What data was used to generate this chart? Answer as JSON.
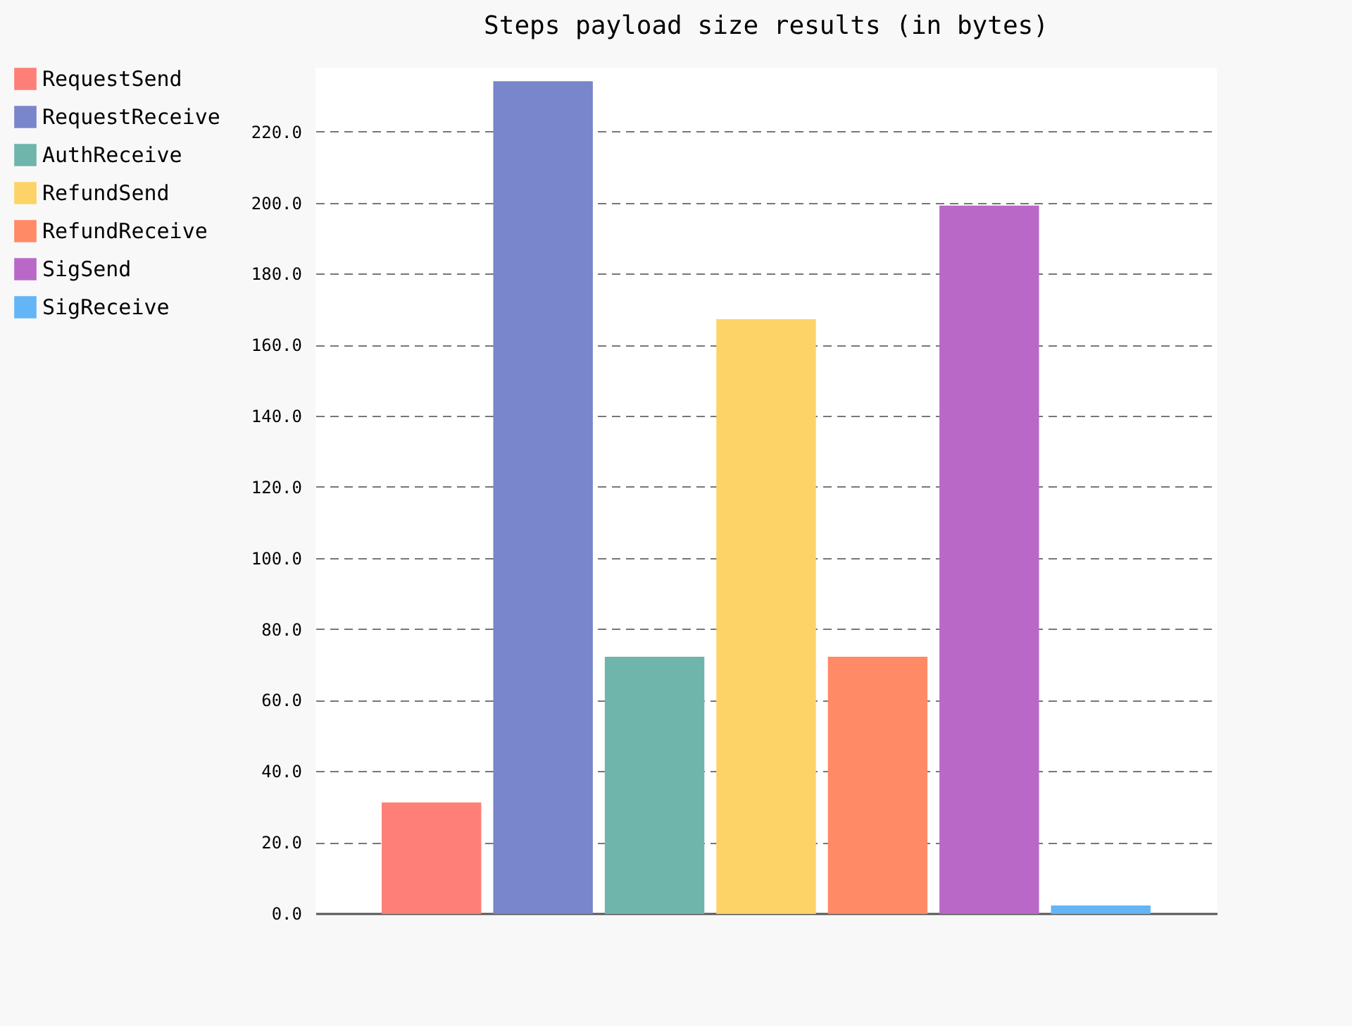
{
  "chart_data": {
    "type": "bar",
    "title": "Steps payload size results (in bytes)",
    "categories": [
      null
    ],
    "series": [
      {
        "name": "RequestSend",
        "color": "#fe7f77",
        "values": [
          31
        ]
      },
      {
        "name": "RequestReceive",
        "color": "#7986cb",
        "values": [
          234
        ]
      },
      {
        "name": "AuthReceive",
        "color": "#70b5ab",
        "values": [
          72
        ]
      },
      {
        "name": "RefundSend",
        "color": "#fdd267",
        "values": [
          167
        ]
      },
      {
        "name": "RefundReceive",
        "color": "#ff8a65",
        "values": [
          72
        ]
      },
      {
        "name": "SigSend",
        "color": "#ba68c8",
        "values": [
          199
        ]
      },
      {
        "name": "SigReceive",
        "color": "#64b5f6",
        "values": [
          2
        ]
      }
    ],
    "ylim": [
      0,
      238
    ],
    "yticks": [
      {
        "value": 0,
        "label": "0.0"
      },
      {
        "value": 20,
        "label": "20.0"
      },
      {
        "value": 40,
        "label": "40.0"
      },
      {
        "value": 60,
        "label": "60.0"
      },
      {
        "value": 80,
        "label": "80.0"
      },
      {
        "value": 100,
        "label": "100.0"
      },
      {
        "value": 120,
        "label": "120.0"
      },
      {
        "value": 140,
        "label": "140.0"
      },
      {
        "value": 160,
        "label": "160.0"
      },
      {
        "value": 180,
        "label": "180.0"
      },
      {
        "value": 200,
        "label": "200.0"
      },
      {
        "value": 220,
        "label": "220.0"
      }
    ],
    "grid": "y",
    "legend": "top left"
  }
}
